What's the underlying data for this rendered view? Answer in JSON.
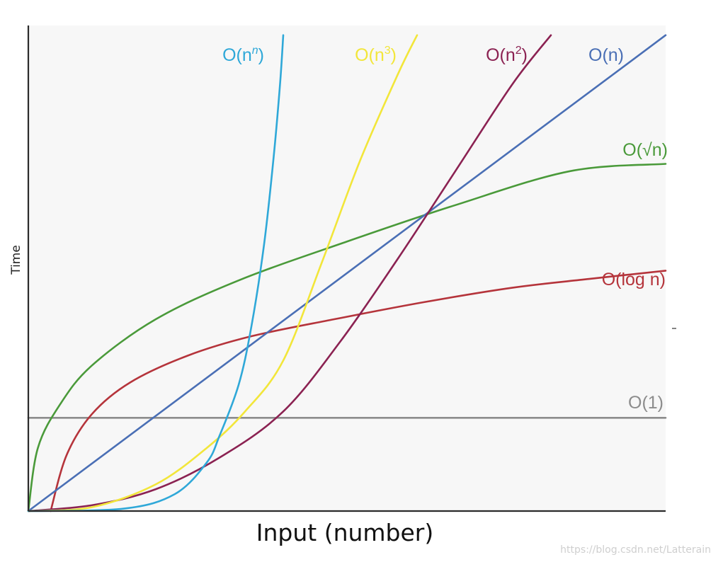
{
  "chart_data": {
    "type": "line",
    "ylabel": "Time",
    "xlabel": "Input (number)",
    "xlim": [
      0,
      10
    ],
    "ylim": [
      0,
      10
    ],
    "series": [
      {
        "key": "const",
        "name": "O(1)",
        "label_base": "O(1)",
        "label_sup": "",
        "label_tail": "",
        "color": "#8c8c8c",
        "x": [
          0,
          10
        ],
        "y": [
          1.92,
          1.92
        ]
      },
      {
        "key": "log",
        "name": "O(log n)",
        "label_base": "O(log n)",
        "label_sup": "",
        "label_tail": "",
        "color": "#b5343b",
        "x": [
          0.35,
          0.6,
          1.0,
          1.6,
          2.5,
          3.5,
          4.8,
          6.2,
          7.6,
          8.8,
          10.0
        ],
        "y": [
          0.0,
          1.15,
          2.0,
          2.65,
          3.2,
          3.6,
          3.95,
          4.3,
          4.6,
          4.78,
          4.95
        ]
      },
      {
        "key": "sqrt",
        "name": "O(√n)",
        "label_base": "O(√n)",
        "label_sup": "",
        "label_tail": "",
        "color": "#4a9a3a",
        "x": [
          0,
          0.15,
          0.5,
          1.0,
          2.0,
          3.3,
          5.0,
          6.7,
          8.5,
          10.0
        ],
        "y": [
          0.0,
          1.3,
          2.2,
          3.0,
          3.95,
          4.75,
          5.55,
          6.3,
          7.0,
          7.15
        ]
      },
      {
        "key": "n",
        "name": "O(n)",
        "label_base": "O(n)",
        "label_sup": "",
        "label_tail": "",
        "color": "#4a6fb5",
        "x": [
          0,
          10.0
        ],
        "y": [
          0.0,
          9.8
        ]
      },
      {
        "key": "n2",
        "name": "O(n2)",
        "label_base": "O(n",
        "label_sup": "2",
        "label_tail": ")",
        "color": "#8b2252",
        "x": [
          0,
          1.0,
          2.0,
          3.0,
          4.0,
          4.9,
          5.8,
          6.7,
          7.6,
          8.2
        ],
        "y": [
          0.0,
          0.12,
          0.45,
          1.1,
          2.05,
          3.5,
          5.2,
          7.0,
          8.8,
          9.8
        ]
      },
      {
        "key": "n3",
        "name": "O(n3)",
        "label_base": "O(n",
        "label_sup": "3",
        "label_tail": ")",
        "color": "#f2e63a",
        "x": [
          0,
          1.0,
          2.0,
          2.8,
          3.4,
          4.0,
          4.6,
          5.2,
          5.8,
          6.1
        ],
        "y": [
          0.0,
          0.08,
          0.55,
          1.3,
          2.05,
          3.1,
          5.1,
          7.2,
          9.0,
          9.8
        ]
      },
      {
        "key": "nn",
        "name": "O(nn)",
        "label_base": "O(n",
        "label_sup": "n",
        "label_tail": ")",
        "color": "#2fa8d8",
        "x": [
          0,
          1.5,
          2.3,
          2.8,
          3.0,
          3.3,
          3.5,
          3.7,
          3.85,
          3.95,
          4.0
        ],
        "y": [
          0.0,
          0.05,
          0.35,
          1.0,
          1.55,
          2.6,
          3.8,
          5.5,
          7.3,
          8.8,
          9.8
        ]
      }
    ]
  },
  "watermark": "https://blog.csdn.net/Latterain"
}
